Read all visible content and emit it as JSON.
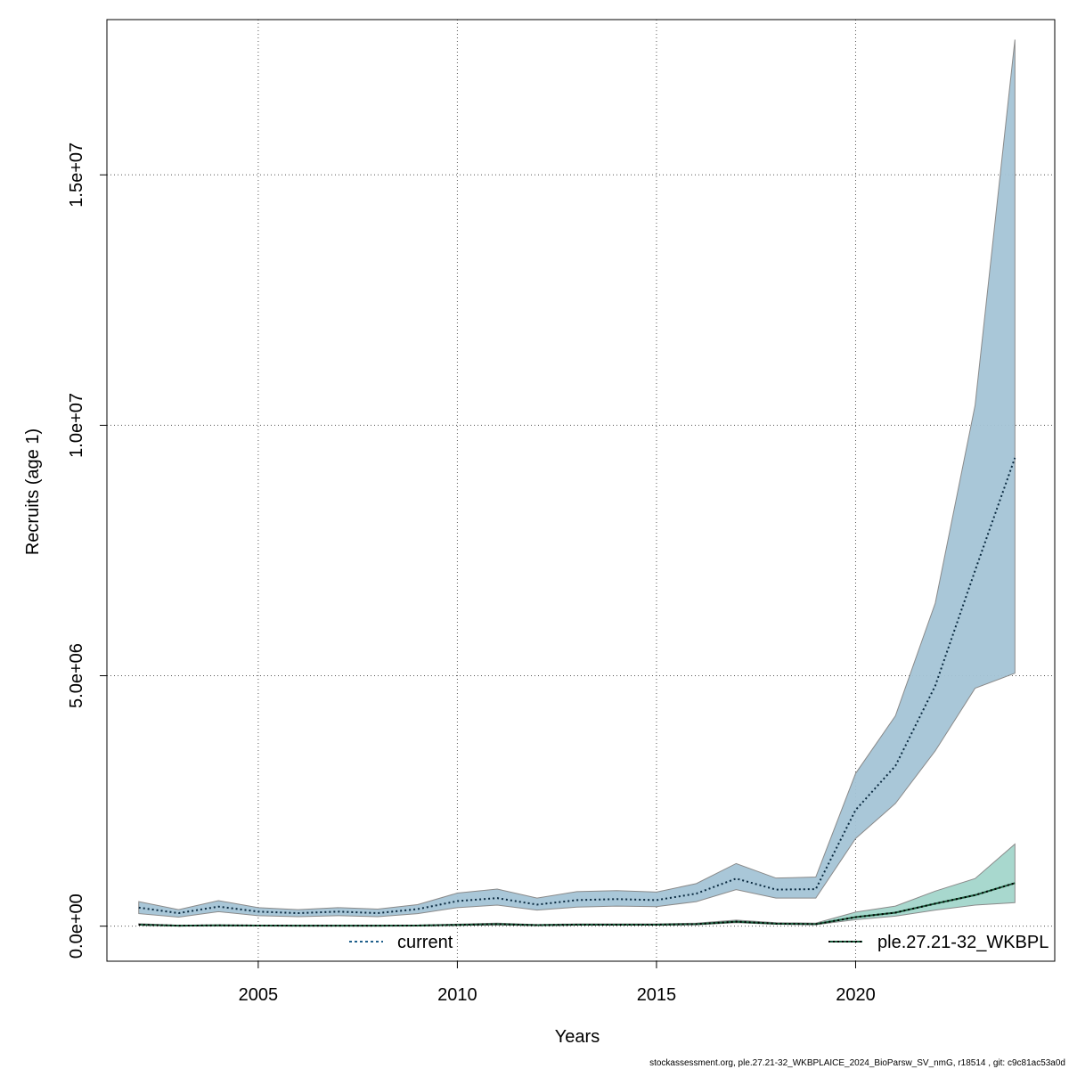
{
  "chart_data": {
    "type": "line",
    "xlabel": "Years",
    "ylabel": "Recruits (age 1)",
    "xlim": [
      2001.2,
      2025.0
    ],
    "ylim": [
      -700000,
      18100000
    ],
    "x_ticks": [
      2005,
      2010,
      2015,
      2020
    ],
    "x_tick_labels": [
      "2005",
      "2010",
      "2015",
      "2020"
    ],
    "y_ticks": [
      0,
      5000000,
      10000000,
      15000000
    ],
    "y_tick_labels": [
      "0.0e+00",
      "5.0e+06",
      "1.0e+07",
      "1.5e+07"
    ],
    "grid": true,
    "legend_position": "bottom",
    "x": [
      2002,
      2003,
      2004,
      2005,
      2006,
      2007,
      2008,
      2009,
      2010,
      2011,
      2012,
      2013,
      2014,
      2015,
      2016,
      2017,
      2018,
      2019,
      2020,
      2021,
      2022,
      2023,
      2024
    ],
    "series": [
      {
        "name": "current",
        "color": "#1f5f8b",
        "band_color": "#a4c4d6",
        "values": [
          370000,
          260000,
          390000,
          290000,
          260000,
          290000,
          260000,
          340000,
          500000,
          560000,
          430000,
          520000,
          540000,
          520000,
          650000,
          950000,
          730000,
          740000,
          2320000,
          3200000,
          4800000,
          7100000,
          9350000
        ],
        "lower": [
          250000,
          180000,
          290000,
          210000,
          190000,
          210000,
          190000,
          250000,
          370000,
          420000,
          320000,
          380000,
          400000,
          390000,
          490000,
          730000,
          560000,
          560000,
          1750000,
          2450000,
          3500000,
          4750000,
          5050000
        ],
        "upper": [
          490000,
          330000,
          510000,
          370000,
          330000,
          370000,
          340000,
          430000,
          660000,
          740000,
          560000,
          690000,
          710000,
          680000,
          850000,
          1250000,
          960000,
          980000,
          3050000,
          4200000,
          6450000,
          10400000,
          17700000
        ]
      },
      {
        "name": "ple.27.21-32_WKBPL",
        "color": "#1a5c3c",
        "band_color": "#a3d6cb",
        "values": [
          30000,
          10000,
          15000,
          12000,
          10000,
          10000,
          10000,
          12000,
          25000,
          40000,
          20000,
          30000,
          30000,
          30000,
          40000,
          90000,
          50000,
          40000,
          180000,
          270000,
          450000,
          620000,
          860000
        ],
        "lower": [
          20000,
          5000,
          8000,
          6000,
          5000,
          5000,
          5000,
          7000,
          15000,
          25000,
          12000,
          20000,
          20000,
          20000,
          28000,
          70000,
          38000,
          30000,
          130000,
          200000,
          320000,
          420000,
          470000
        ],
        "upper": [
          50000,
          18000,
          25000,
          20000,
          18000,
          18000,
          18000,
          20000,
          40000,
          60000,
          32000,
          45000,
          45000,
          45000,
          60000,
          120000,
          70000,
          60000,
          280000,
          400000,
          700000,
          950000,
          1640000
        ]
      }
    ]
  },
  "footer_text": "stockassessment.org, ple.27.21-32_WKBPLAICE_2024_BioParsw_SV_nmG, r18514 , git: c9c81ac53a0d"
}
